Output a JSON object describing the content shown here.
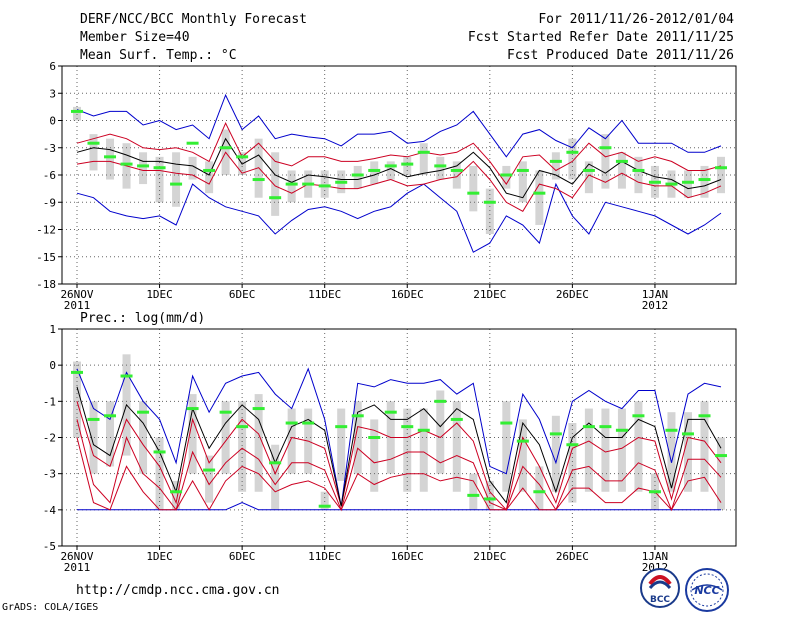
{
  "header": {
    "title": "DERF/NCC/BCC Monthly Forecast",
    "member_size": "Member Size=40",
    "variable": "Mean Surf. Temp.: °C",
    "period": "For 2011/11/26-2012/01/04",
    "start_date": "Fcst Started Refer Date 2011/11/25",
    "produced_date": "Fcst Produced Date 2011/11/26"
  },
  "footer": {
    "url": "http://cmdp.ncc.cma.gov.cn",
    "credit": "GrADS: COLA/IGES",
    "logo_bcc": "BCC",
    "logo_ncc": "NCC"
  },
  "colors": {
    "max_min": "#0000cc",
    "spread": "#cc0022",
    "mean": "#000000",
    "median": "#33ee33",
    "box": "#d4d4d4",
    "grid": "#666666"
  },
  "chart_data": [
    {
      "type": "line",
      "title": "Mean Surf. Temp.: °C",
      "x": [
        0,
        1,
        2,
        3,
        4,
        5,
        6,
        7,
        8,
        9,
        10,
        11,
        12,
        13,
        14,
        15,
        16,
        17,
        18,
        19,
        20,
        21,
        22,
        23,
        24,
        25,
        26,
        27,
        28,
        29,
        30,
        31,
        32,
        33,
        34,
        35,
        36,
        37,
        38,
        39
      ],
      "xtick_labels": [
        "26NOV",
        "1DEC",
        "6DEC",
        "11DEC",
        "16DEC",
        "21DEC",
        "26DEC",
        "1JAN"
      ],
      "xtick_index": [
        0,
        5,
        10,
        15,
        20,
        25,
        30,
        35
      ],
      "year_labels": [
        {
          "label": "2011",
          "index": 0
        },
        {
          "label": "2012",
          "index": 35
        }
      ],
      "ylim": [
        -18,
        6
      ],
      "yticks": [
        6,
        3,
        0,
        -3,
        -6,
        -9,
        -12,
        -15,
        -18
      ],
      "series": [
        {
          "name": "max",
          "values": [
            1.2,
            0.5,
            1.0,
            1.0,
            -0.5,
            0.0,
            -1.0,
            -0.5,
            -2.0,
            2.8,
            -1.0,
            0.5,
            -2.0,
            -1.5,
            -1.8,
            -2.0,
            -2.8,
            -1.5,
            -1.5,
            -1.2,
            -2.5,
            -2.3,
            -1.2,
            -0.5,
            1.0,
            -1.5,
            -4.0,
            -1.5,
            -1.0,
            -2.2,
            -3.0,
            -0.8,
            -2.0,
            0.0,
            -2.5,
            -2.5,
            -2.5,
            -3.5,
            -3.5,
            -2.8
          ]
        },
        {
          "name": "upper",
          "values": [
            -2.5,
            -2.0,
            -1.5,
            -2.0,
            -3.0,
            -3.2,
            -3.0,
            -3.5,
            -4.5,
            -0.3,
            -4.0,
            -2.5,
            -4.5,
            -5.0,
            -4.0,
            -4.0,
            -4.5,
            -4.5,
            -4.2,
            -3.8,
            -4.0,
            -3.5,
            -3.8,
            -3.5,
            -2.5,
            -4.5,
            -7.0,
            -4.0,
            -3.8,
            -5.5,
            -4.5,
            -2.5,
            -4.0,
            -3.5,
            -4.5,
            -4.0,
            -4.5,
            -5.5,
            -5.5,
            -5.0
          ]
        },
        {
          "name": "mean",
          "values": [
            -3.5,
            -3.0,
            -3.2,
            -3.8,
            -4.5,
            -4.5,
            -4.8,
            -5.0,
            -6.0,
            -2.0,
            -4.8,
            -3.8,
            -6.0,
            -6.8,
            -6.0,
            -6.2,
            -6.5,
            -6.5,
            -6.0,
            -5.3,
            -6.2,
            -5.8,
            -5.5,
            -5.0,
            -3.5,
            -5.2,
            -8.0,
            -8.5,
            -5.5,
            -6.0,
            -7.0,
            -4.8,
            -5.8,
            -4.5,
            -5.5,
            -6.2,
            -6.5,
            -7.5,
            -7.2,
            -6.5
          ]
        },
        {
          "name": "lower",
          "values": [
            -4.8,
            -4.5,
            -4.5,
            -5.0,
            -5.5,
            -5.5,
            -5.8,
            -6.0,
            -7.0,
            -3.5,
            -5.8,
            -5.2,
            -7.2,
            -8.0,
            -7.0,
            -7.2,
            -7.5,
            -7.5,
            -7.0,
            -6.5,
            -7.2,
            -7.0,
            -6.5,
            -6.2,
            -4.5,
            -6.5,
            -9.0,
            -10.0,
            -7.0,
            -7.5,
            -8.5,
            -6.0,
            -6.8,
            -5.8,
            -6.8,
            -7.2,
            -7.2,
            -8.5,
            -8.0,
            -7.2
          ]
        },
        {
          "name": "min",
          "values": [
            -8.0,
            -8.5,
            -10.0,
            -10.5,
            -10.8,
            -10.5,
            -11.5,
            -7.0,
            -8.5,
            -9.5,
            -10.0,
            -10.5,
            -12.5,
            -11.0,
            -9.8,
            -9.5,
            -10.0,
            -10.8,
            -10.0,
            -9.5,
            -8.0,
            -7.0,
            -8.5,
            -10.0,
            -14.5,
            -13.5,
            -10.5,
            -11.5,
            -13.5,
            -7.0,
            -10.5,
            -12.5,
            -9.0,
            -9.5,
            -10.0,
            -10.5,
            -11.5,
            -12.5,
            -11.5,
            -10.2
          ]
        },
        {
          "name": "median",
          "values": [
            1.0,
            -2.5,
            -4.0,
            -4.8,
            -5.0,
            -5.2,
            -7.0,
            -2.5,
            -5.5,
            -3.0,
            -4.0,
            -6.5,
            -8.5,
            -7.0,
            -7.0,
            -7.2,
            -6.8,
            -6.0,
            -5.5,
            -5.0,
            -4.8,
            -3.5,
            -5.0,
            -5.5,
            -8.0,
            -9.0,
            -6.0,
            -5.5,
            -8.0,
            -4.5,
            -3.5,
            -5.5,
            -3.0,
            -4.5,
            -5.5,
            -6.8,
            -7.0,
            -6.8,
            -6.5,
            -5.2
          ]
        },
        {
          "name": "box_high",
          "values": [
            1.5,
            -1.5,
            -2.0,
            -2.5,
            -3.5,
            -4.0,
            -3.5,
            -4.0,
            -4.5,
            -1.0,
            -3.5,
            -2.0,
            -3.5,
            -5.5,
            -5.5,
            -5.5,
            -5.5,
            -5.0,
            -4.5,
            -4.5,
            -4.0,
            -2.5,
            -4.0,
            -4.5,
            -5.0,
            -7.5,
            -5.0,
            -4.5,
            -5.5,
            -3.5,
            -2.0,
            -4.5,
            -1.5,
            -3.5,
            -4.0,
            -5.0,
            -5.5,
            -5.5,
            -5.0,
            -4.0
          ]
        },
        {
          "name": "box_low",
          "values": [
            0.0,
            -5.5,
            -6.5,
            -7.5,
            -7.0,
            -9.0,
            -9.5,
            -6.5,
            -8.0,
            -6.0,
            -6.0,
            -8.5,
            -10.5,
            -9.0,
            -8.5,
            -8.5,
            -8.0,
            -7.5,
            -7.0,
            -6.5,
            -6.0,
            -6.0,
            -6.5,
            -7.5,
            -10.0,
            -12.5,
            -7.5,
            -9.0,
            -11.5,
            -6.5,
            -6.5,
            -8.0,
            -7.5,
            -7.5,
            -8.0,
            -8.5,
            -8.5,
            -8.5,
            -8.5,
            -8.0
          ]
        }
      ]
    },
    {
      "type": "line",
      "title": "Prec.: log(mm/d)",
      "x": [
        0,
        1,
        2,
        3,
        4,
        5,
        6,
        7,
        8,
        9,
        10,
        11,
        12,
        13,
        14,
        15,
        16,
        17,
        18,
        19,
        20,
        21,
        22,
        23,
        24,
        25,
        26,
        27,
        28,
        29,
        30,
        31,
        32,
        33,
        34,
        35,
        36,
        37,
        38,
        39
      ],
      "xtick_labels": [
        "26NOV",
        "1DEC",
        "6DEC",
        "11DEC",
        "16DEC",
        "21DEC",
        "26DEC",
        "1JAN"
      ],
      "xtick_index": [
        0,
        5,
        10,
        15,
        20,
        25,
        30,
        35
      ],
      "year_labels": [
        {
          "label": "2011",
          "index": 0
        },
        {
          "label": "2012",
          "index": 35
        }
      ],
      "ylim": [
        -5,
        1
      ],
      "yticks": [
        1,
        0,
        -1,
        -2,
        -3,
        -4,
        -5
      ],
      "series": [
        {
          "name": "max",
          "values": [
            -0.1,
            -1.2,
            -1.5,
            -0.2,
            -1.0,
            -1.5,
            -2.7,
            -0.3,
            -1.3,
            -0.5,
            -0.3,
            -0.2,
            -0.8,
            -1.2,
            -0.1,
            -1.5,
            -3.9,
            -0.5,
            -0.6,
            -0.4,
            -0.5,
            -0.5,
            -0.4,
            -0.8,
            -0.5,
            -2.8,
            -3.0,
            -0.8,
            -1.5,
            -2.7,
            -1.0,
            -0.7,
            -1.0,
            -1.2,
            -0.7,
            -0.7,
            -2.7,
            -0.8,
            -0.5,
            -0.6
          ]
        },
        {
          "name": "mean",
          "values": [
            -0.6,
            -2.2,
            -2.5,
            -1.1,
            -1.6,
            -2.4,
            -3.5,
            -1.2,
            -2.3,
            -1.6,
            -1.1,
            -1.5,
            -2.7,
            -1.7,
            -1.5,
            -1.8,
            -3.9,
            -1.3,
            -1.1,
            -1.5,
            -1.5,
            -1.2,
            -1.7,
            -1.2,
            -1.5,
            -3.2,
            -3.8,
            -1.6,
            -2.2,
            -3.5,
            -2.0,
            -1.6,
            -2.0,
            -2.0,
            -1.5,
            -1.7,
            -3.4,
            -1.5,
            -1.5,
            -2.3
          ]
        },
        {
          "name": "upper",
          "values": [
            -1.0,
            -2.5,
            -2.8,
            -1.5,
            -2.2,
            -2.8,
            -3.8,
            -1.5,
            -2.7,
            -2.1,
            -1.5,
            -1.9,
            -3.0,
            -2.0,
            -2.1,
            -2.3,
            -3.9,
            -1.7,
            -1.8,
            -2.0,
            -2.0,
            -1.8,
            -2.0,
            -1.6,
            -2.1,
            -3.5,
            -4.0,
            -2.0,
            -2.8,
            -3.8,
            -2.3,
            -2.1,
            -2.4,
            -2.3,
            -2.0,
            -2.1,
            -3.7,
            -2.0,
            -2.1,
            -2.7
          ]
        },
        {
          "name": "lower",
          "values": [
            -1.5,
            -3.3,
            -3.8,
            -2.0,
            -3.0,
            -3.4,
            -4.0,
            -2.4,
            -3.3,
            -2.7,
            -2.3,
            -2.6,
            -3.3,
            -2.7,
            -2.7,
            -2.9,
            -4.0,
            -2.3,
            -2.7,
            -2.6,
            -2.4,
            -2.4,
            -2.7,
            -2.5,
            -2.7,
            -3.8,
            -4.0,
            -2.8,
            -3.3,
            -4.0,
            -2.9,
            -2.8,
            -3.2,
            -3.2,
            -2.7,
            -2.9,
            -4.0,
            -2.6,
            -2.6,
            -3.1
          ]
        },
        {
          "name": "lowest",
          "values": [
            -2.0,
            -3.8,
            -4.0,
            -2.8,
            -3.5,
            -4.0,
            -4.0,
            -3.2,
            -4.0,
            -3.2,
            -2.8,
            -3.0,
            -3.5,
            -3.3,
            -3.2,
            -3.4,
            -4.0,
            -3.0,
            -3.3,
            -3.1,
            -3.0,
            -3.0,
            -3.2,
            -3.1,
            -3.2,
            -4.0,
            -4.0,
            -3.4,
            -4.0,
            -4.0,
            -3.4,
            -3.4,
            -3.8,
            -3.8,
            -3.4,
            -3.5,
            -4.0,
            -3.2,
            -3.1,
            -3.8
          ]
        },
        {
          "name": "min",
          "values": [
            -4.0,
            -4.0,
            -4.0,
            -4.0,
            -4.0,
            -4.0,
            -4.0,
            -4.0,
            -4.0,
            -4.0,
            -3.8,
            -4.0,
            -4.0,
            -4.0,
            -4.0,
            -4.0,
            -4.0,
            -4.0,
            -4.0,
            -4.0,
            -4.0,
            -4.0,
            -4.0,
            -4.0,
            -4.0,
            -4.0,
            -4.0,
            -4.0,
            -4.0,
            -4.0,
            -4.0,
            -4.0,
            -4.0,
            -4.0,
            -4.0,
            -4.0,
            -4.0,
            -4.0,
            -4.0,
            -4.0
          ]
        },
        {
          "name": "median",
          "values": [
            -0.2,
            -1.5,
            -1.4,
            -0.3,
            -1.3,
            -2.4,
            -3.5,
            -1.2,
            -2.9,
            -1.3,
            -1.7,
            -1.2,
            -2.7,
            -1.6,
            -1.6,
            -3.9,
            -1.7,
            -1.4,
            -2.0,
            -1.3,
            -1.7,
            -1.8,
            -1.0,
            -1.5,
            -3.6,
            -3.7,
            -1.6,
            -2.1,
            -3.5,
            -1.9,
            -2.2,
            -1.7,
            -1.7,
            -1.8,
            -1.4,
            -3.5,
            -1.8,
            -1.9,
            -1.4,
            -2.5
          ]
        },
        {
          "name": "box_high",
          "values": [
            0.1,
            -1.0,
            -1.0,
            0.3,
            -1.0,
            -2.0,
            -3.2,
            -0.8,
            -2.5,
            -1.0,
            -1.0,
            -0.8,
            -2.2,
            -1.2,
            -1.2,
            -3.5,
            -1.2,
            -1.0,
            -1.5,
            -1.0,
            -1.2,
            -1.2,
            -0.7,
            -1.0,
            -3.0,
            -3.2,
            -1.0,
            -1.5,
            -2.8,
            -1.4,
            -1.6,
            -1.2,
            -1.2,
            -1.2,
            -1.0,
            -3.0,
            -1.3,
            -1.3,
            -1.0,
            -2.0
          ]
        },
        {
          "name": "box_low",
          "values": [
            -2.0,
            -3.0,
            -2.8,
            -2.5,
            -3.0,
            -4.0,
            -4.0,
            -3.0,
            -3.8,
            -3.0,
            -3.5,
            -3.5,
            -4.0,
            -3.0,
            -3.0,
            -4.0,
            -3.2,
            -3.0,
            -3.5,
            -3.0,
            -3.5,
            -3.5,
            -3.0,
            -3.5,
            -4.0,
            -4.0,
            -3.5,
            -3.5,
            -4.0,
            -3.5,
            -3.8,
            -3.5,
            -3.5,
            -3.5,
            -3.5,
            -4.0,
            -3.5,
            -3.5,
            -3.5,
            -4.0
          ]
        }
      ]
    }
  ]
}
